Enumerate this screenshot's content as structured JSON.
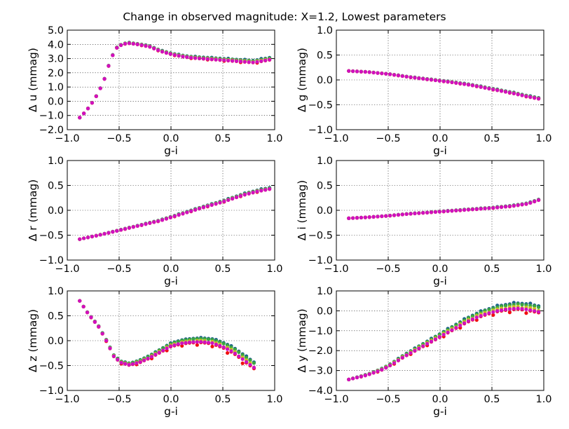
{
  "figure": {
    "title": "Change in observed magnitude: X=1.2, Lowest parameters"
  },
  "chart_data": [
    {
      "type": "scatter",
      "xlabel": "g-i",
      "ylabel": "Δ u (mmag)",
      "xlim": [
        -1.0,
        1.0
      ],
      "ylim": [
        -2.0,
        5.0
      ],
      "xticks": [
        "−1.0",
        "−0.5",
        "0.0",
        "0.5",
        "1.0"
      ],
      "yticks": [
        "−2.0",
        "−1.0",
        "0.0",
        "1.0",
        "2.0",
        "3.0",
        "4.0",
        "5.0"
      ],
      "grid": true,
      "curve": {
        "x": [
          -0.88,
          -0.82,
          -0.76,
          -0.7,
          -0.64,
          -0.58,
          -0.52,
          -0.46,
          -0.4,
          -0.3,
          -0.2,
          -0.1,
          0.0,
          0.1,
          0.2,
          0.3,
          0.4,
          0.5,
          0.6,
          0.7,
          0.8,
          0.95
        ],
        "y": [
          -1.15,
          -0.7,
          -0.1,
          0.6,
          1.6,
          3.0,
          3.8,
          4.05,
          4.1,
          4.0,
          3.85,
          3.55,
          3.35,
          3.2,
          3.1,
          3.05,
          3.0,
          2.95,
          2.9,
          2.85,
          2.8,
          3.0
        ]
      },
      "series_offsets": [
        0.1,
        0.03,
        -0.05,
        -0.15
      ]
    },
    {
      "type": "scatter",
      "xlabel": "g-i",
      "ylabel": "Δ g (mmag)",
      "xlim": [
        -1.0,
        1.0
      ],
      "ylim": [
        -1.0,
        1.0
      ],
      "xticks": [
        "−1.0",
        "−0.5",
        "0.0",
        "0.5",
        "1.0"
      ],
      "yticks": [
        "−1.0",
        "−0.5",
        "0.0",
        "0.5",
        "1.0"
      ],
      "grid": true,
      "curve": {
        "x": [
          -0.88,
          -0.7,
          -0.5,
          -0.3,
          -0.1,
          0.1,
          0.3,
          0.5,
          0.7,
          0.85,
          0.95
        ],
        "y": [
          0.18,
          0.16,
          0.12,
          0.06,
          0.01,
          -0.04,
          -0.1,
          -0.18,
          -0.26,
          -0.33,
          -0.37
        ]
      },
      "series_offsets": [
        0.015,
        0.005,
        -0.005,
        -0.015
      ]
    },
    {
      "type": "scatter",
      "xlabel": "g-i",
      "ylabel": "Δ r (mmag)",
      "xlim": [
        -1.0,
        1.0
      ],
      "ylim": [
        -1.0,
        1.0
      ],
      "xticks": [
        "−1.0",
        "−0.5",
        "0.0",
        "0.5",
        "1.0"
      ],
      "yticks": [
        "−1.0",
        "−0.5",
        "0.0",
        "0.5",
        "1.0"
      ],
      "grid": true,
      "curve": {
        "x": [
          -0.88,
          -0.7,
          -0.5,
          -0.3,
          -0.1,
          0.1,
          0.3,
          0.5,
          0.7,
          0.85,
          0.95
        ],
        "y": [
          -0.58,
          -0.5,
          -0.4,
          -0.3,
          -0.2,
          -0.07,
          0.06,
          0.18,
          0.32,
          0.4,
          0.44
        ]
      },
      "series_offsets": [
        0.02,
        0.005,
        -0.01,
        -0.025
      ]
    },
    {
      "type": "scatter",
      "xlabel": "g-i",
      "ylabel": "Δ i (mmag)",
      "xlim": [
        -1.0,
        1.0
      ],
      "ylim": [
        -1.0,
        1.0
      ],
      "xticks": [
        "−1.0",
        "−0.5",
        "0.0",
        "0.5",
        "1.0"
      ],
      "yticks": [
        "−1.0",
        "−0.5",
        "0.0",
        "0.5",
        "1.0"
      ],
      "grid": true,
      "curve": {
        "x": [
          -0.88,
          -0.7,
          -0.5,
          -0.3,
          -0.1,
          0.1,
          0.3,
          0.5,
          0.7,
          0.85,
          0.95
        ],
        "y": [
          -0.16,
          -0.14,
          -0.11,
          -0.07,
          -0.04,
          -0.01,
          0.02,
          0.05,
          0.09,
          0.14,
          0.21
        ]
      },
      "series_offsets": [
        0.01,
        0.003,
        -0.004,
        -0.01
      ]
    },
    {
      "type": "scatter",
      "xlabel": "g-i",
      "ylabel": "Δ z (mmag)",
      "xlim": [
        -1.0,
        1.0
      ],
      "ylim": [
        -1.0,
        1.0
      ],
      "xticks": [
        "−1.0",
        "−0.5",
        "0.0",
        "0.5",
        "1.0"
      ],
      "yticks": [
        "−1.0",
        "−0.5",
        "0.0",
        "0.5",
        "1.0"
      ],
      "grid": true,
      "curve": {
        "x": [
          -0.88,
          -0.8,
          -0.7,
          -0.62,
          -0.55,
          -0.48,
          -0.4,
          -0.3,
          -0.2,
          -0.1,
          0.0,
          0.1,
          0.2,
          0.3,
          0.4,
          0.5,
          0.6,
          0.7,
          0.8
        ],
        "y": [
          0.8,
          0.55,
          0.3,
          0.0,
          -0.3,
          -0.42,
          -0.46,
          -0.4,
          -0.3,
          -0.18,
          -0.06,
          0.0,
          0.03,
          0.04,
          0.02,
          -0.05,
          -0.15,
          -0.3,
          -0.45
        ]
      },
      "series_offsets": [
        0.03,
        0.0,
        -0.09,
        -0.18
      ]
    },
    {
      "type": "scatter",
      "xlabel": "g-i",
      "ylabel": "Δ y (mmag)",
      "xlim": [
        -1.0,
        1.0
      ],
      "ylim": [
        -4.0,
        1.0
      ],
      "xticks": [
        "−1.0",
        "−0.5",
        "0.0",
        "0.5",
        "1.0"
      ],
      "yticks": [
        "−4.0",
        "−3.0",
        "−2.0",
        "−1.0",
        "0.0",
        "1.0"
      ],
      "grid": true,
      "curve": {
        "x": [
          -0.88,
          -0.7,
          -0.55,
          -0.45,
          -0.35,
          -0.25,
          -0.15,
          -0.05,
          0.05,
          0.15,
          0.25,
          0.35,
          0.45,
          0.55,
          0.65,
          0.75,
          0.85,
          0.95
        ],
        "y": [
          -3.45,
          -3.2,
          -2.9,
          -2.6,
          -2.25,
          -1.95,
          -1.65,
          -1.35,
          -1.05,
          -0.75,
          -0.45,
          -0.2,
          0.0,
          0.15,
          0.25,
          0.3,
          0.25,
          0.15
        ]
      },
      "series_offsets": [
        0.15,
        0.05,
        -0.15,
        -0.4
      ]
    }
  ],
  "series_colors": [
    "#1a5f8a",
    "#3aa540",
    "#c8c020",
    "#f01010",
    "#d010c0"
  ]
}
